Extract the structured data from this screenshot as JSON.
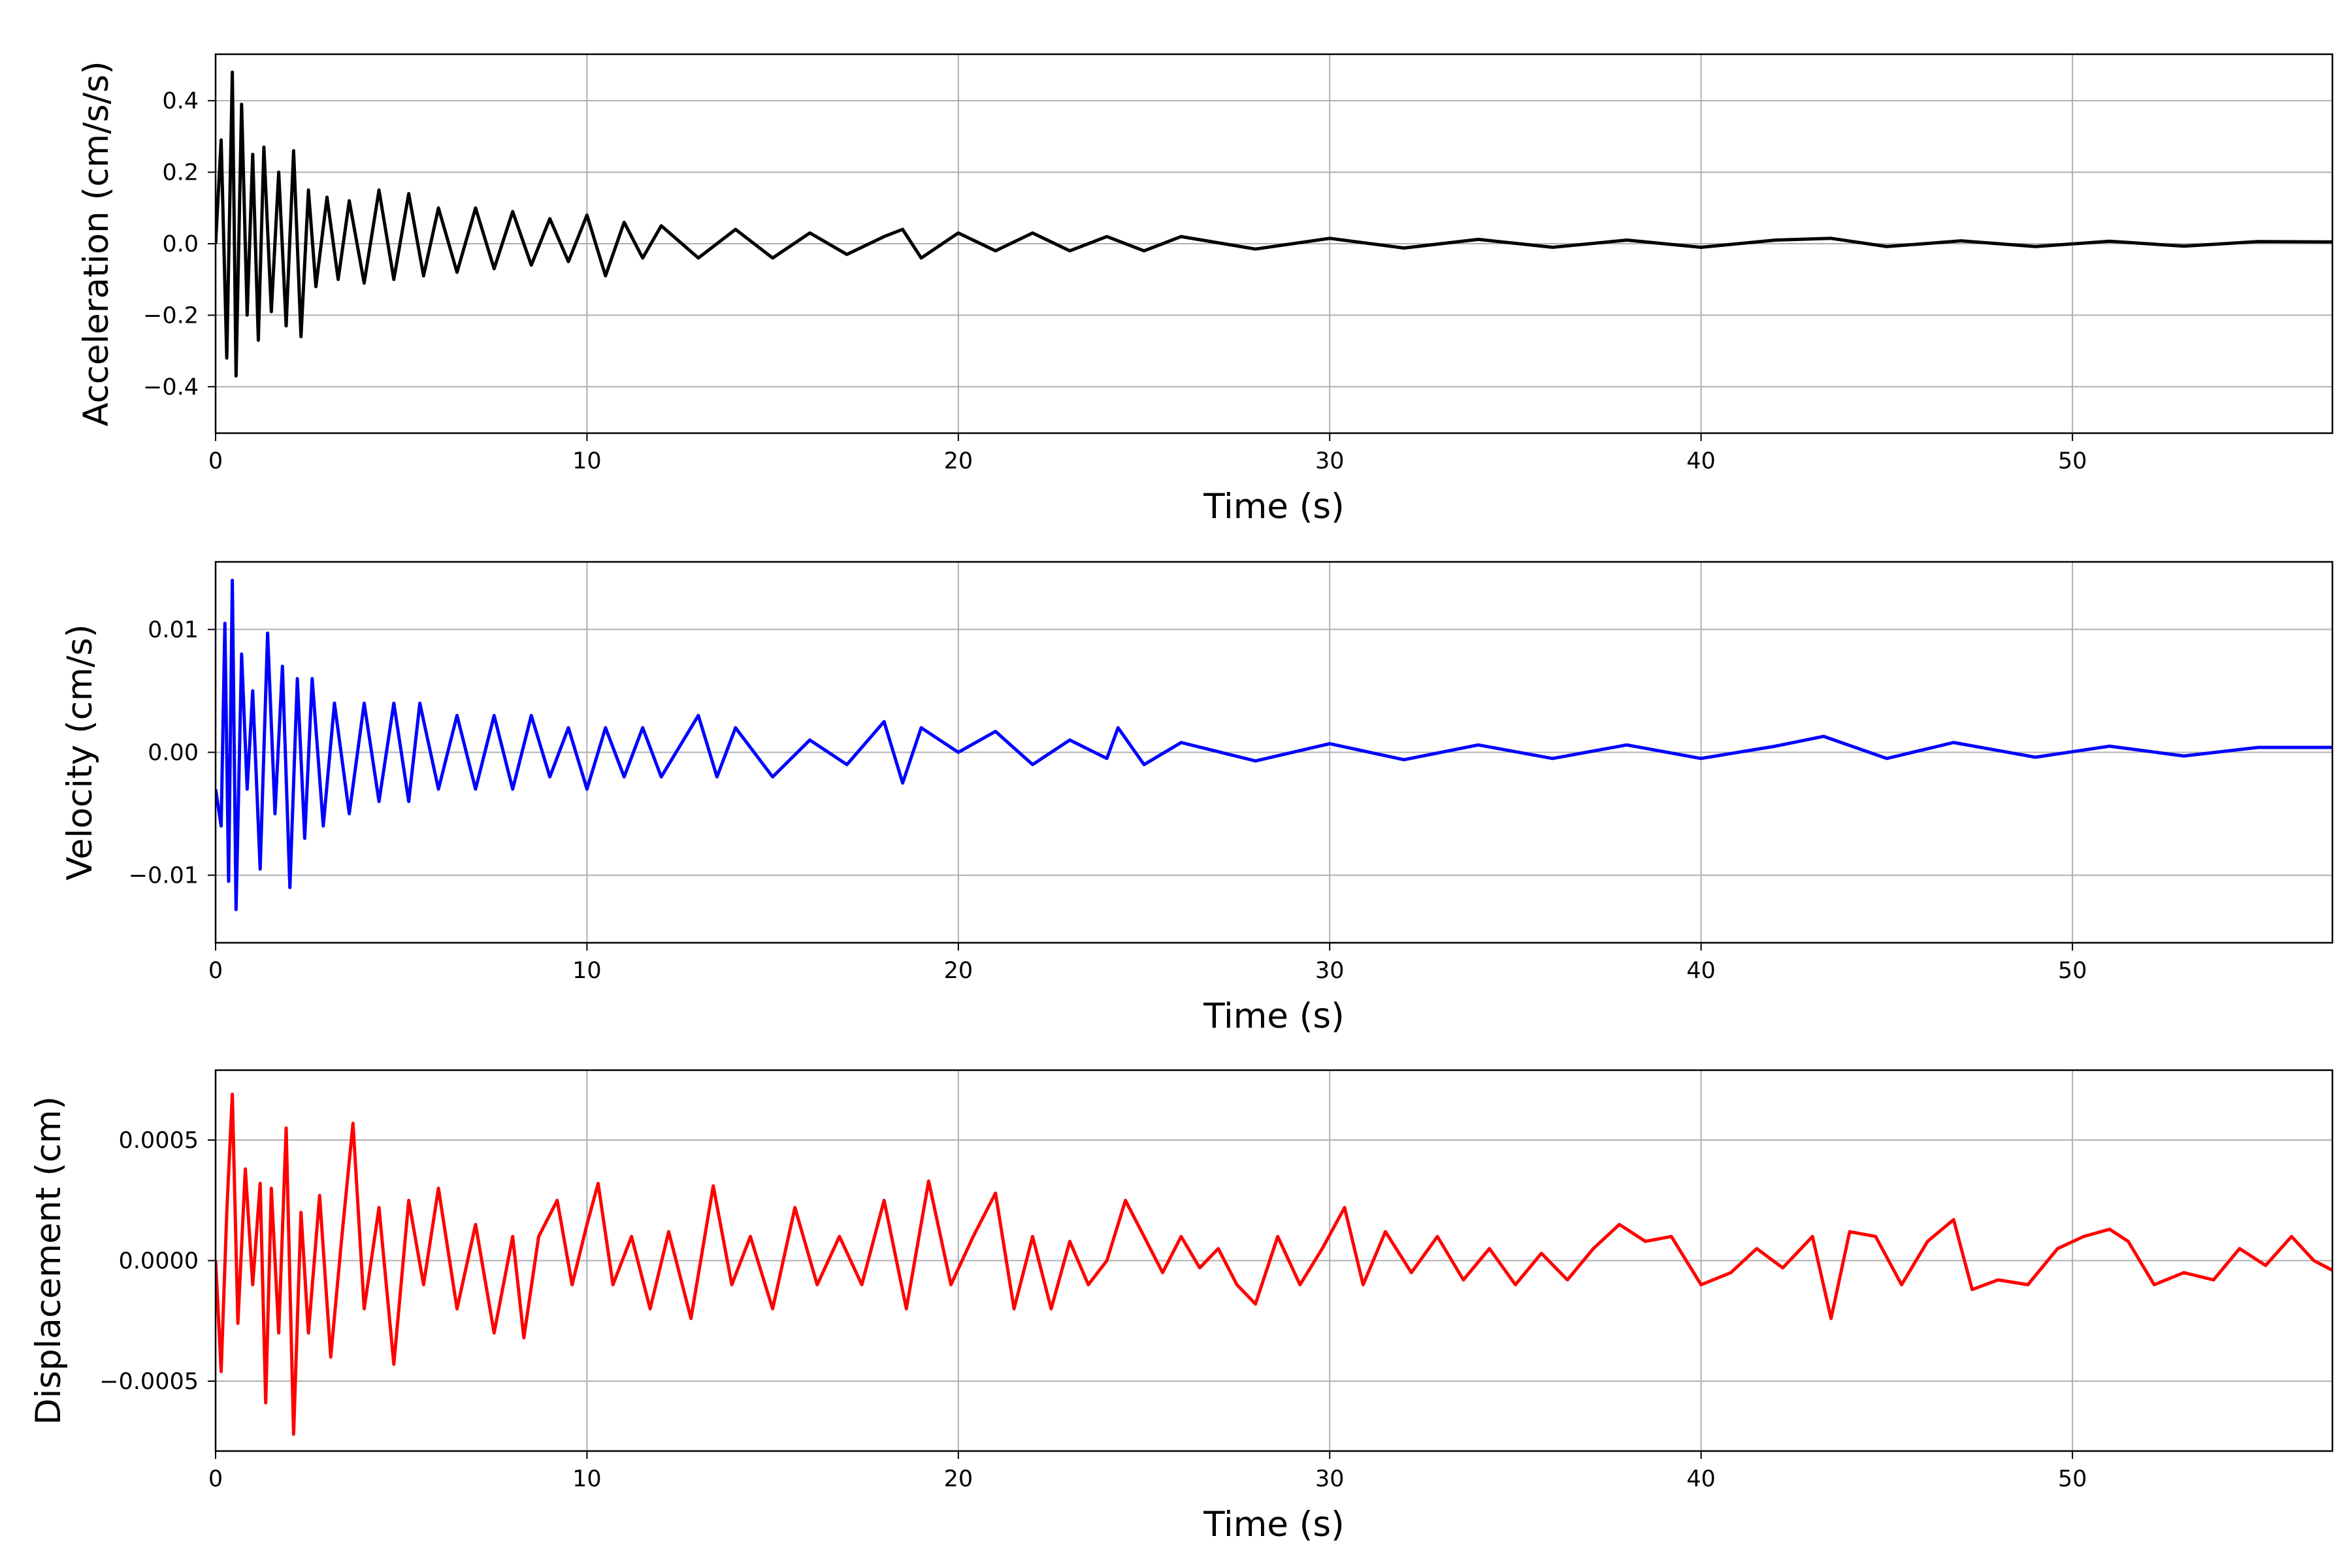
{
  "chart_data": [
    {
      "type": "line",
      "xlabel": "Time (s)",
      "ylabel": "Acceleration (cm/s/s)",
      "xlim": [
        0,
        57
      ],
      "ylim": [
        -0.53,
        0.53
      ],
      "xticks": [
        0,
        10,
        20,
        30,
        40,
        50
      ],
      "xtick_labels": [
        "0",
        "10",
        "20",
        "30",
        "40",
        "50"
      ],
      "yticks": [
        -0.4,
        -0.2,
        0.0,
        0.2,
        0.4
      ],
      "ytick_labels": [
        "−0.4",
        "−0.2",
        "0.0",
        "0.2",
        "0.4"
      ],
      "grid": true,
      "color": "#000000",
      "series": [
        {
          "x": [
            0,
            0.15,
            0.3,
            0.45,
            0.55,
            0.7,
            0.85,
            1.0,
            1.15,
            1.3,
            1.5,
            1.7,
            1.9,
            2.1,
            2.3,
            2.5,
            2.7,
            3.0,
            3.3,
            3.6,
            4.0,
            4.4,
            4.8,
            5.2,
            5.6,
            6.0,
            6.5,
            7.0,
            7.5,
            8.0,
            8.5,
            9.0,
            9.5,
            10.0,
            10.5,
            11.0,
            11.5,
            12.0,
            13.0,
            14.0,
            15.0,
            16.0,
            17.0,
            18.0,
            18.5,
            19.0,
            20.0,
            21.0,
            22.0,
            23.0,
            24.0,
            25.0,
            26.0,
            28.0,
            30.0,
            32.0,
            34.0,
            36.0,
            38.0,
            40.0,
            42.0,
            43.5,
            45.0,
            47.0,
            49.0,
            51.0,
            53.0,
            55.0,
            57.0
          ],
          "y": [
            0.0,
            0.29,
            -0.32,
            0.48,
            -0.37,
            0.39,
            -0.2,
            0.25,
            -0.27,
            0.27,
            -0.19,
            0.2,
            -0.23,
            0.26,
            -0.26,
            0.15,
            -0.12,
            0.13,
            -0.1,
            0.12,
            -0.11,
            0.15,
            -0.1,
            0.14,
            -0.09,
            0.1,
            -0.08,
            0.1,
            -0.07,
            0.09,
            -0.06,
            0.07,
            -0.05,
            0.08,
            -0.09,
            0.06,
            -0.04,
            0.05,
            -0.04,
            0.04,
            -0.04,
            0.03,
            -0.03,
            0.02,
            0.04,
            -0.04,
            0.03,
            -0.02,
            0.03,
            -0.02,
            0.02,
            -0.02,
            0.02,
            -0.015,
            0.015,
            -0.012,
            0.012,
            -0.01,
            0.01,
            -0.01,
            0.01,
            0.015,
            -0.008,
            0.008,
            -0.008,
            0.007,
            -0.007,
            0.006,
            0.005
          ]
        }
      ]
    },
    {
      "type": "line",
      "xlabel": "Time (s)",
      "ylabel": "Velocity (cm/s)",
      "xlim": [
        0,
        57
      ],
      "ylim": [
        -0.0155,
        0.0155
      ],
      "xticks": [
        0,
        10,
        20,
        30,
        40,
        50
      ],
      "xtick_labels": [
        "0",
        "10",
        "20",
        "30",
        "40",
        "50"
      ],
      "yticks": [
        -0.01,
        0.0,
        0.01
      ],
      "ytick_labels": [
        "−0.01",
        "0.00",
        "0.01"
      ],
      "grid": true,
      "color": "#0000ff",
      "series": [
        {
          "x": [
            0,
            0.15,
            0.25,
            0.35,
            0.45,
            0.55,
            0.7,
            0.85,
            1.0,
            1.2,
            1.4,
            1.6,
            1.8,
            2.0,
            2.2,
            2.4,
            2.6,
            2.9,
            3.2,
            3.6,
            4.0,
            4.4,
            4.8,
            5.2,
            5.5,
            6.0,
            6.5,
            7.0,
            7.5,
            8.0,
            8.5,
            9.0,
            9.5,
            10.0,
            10.5,
            11.0,
            11.5,
            12.0,
            13.0,
            13.5,
            14.0,
            15.0,
            16.0,
            17.0,
            18.0,
            18.5,
            19.0,
            20.0,
            21.0,
            22.0,
            23.0,
            24.0,
            24.3,
            25.0,
            26.0,
            28.0,
            30.0,
            32.0,
            34.0,
            36.0,
            38.0,
            40.0,
            42.0,
            43.3,
            45.0,
            46.8,
            49.0,
            51.0,
            53.0,
            55.0,
            57.0
          ],
          "y": [
            -0.003,
            -0.006,
            0.0105,
            -0.0105,
            0.014,
            -0.0128,
            0.008,
            -0.003,
            0.005,
            -0.0095,
            0.0097,
            -0.005,
            0.007,
            -0.011,
            0.006,
            -0.007,
            0.006,
            -0.006,
            0.004,
            -0.005,
            0.004,
            -0.004,
            0.004,
            -0.004,
            0.004,
            -0.003,
            0.003,
            -0.003,
            0.003,
            -0.003,
            0.003,
            -0.002,
            0.002,
            -0.003,
            0.002,
            -0.002,
            0.002,
            -0.002,
            0.003,
            -0.002,
            0.002,
            -0.002,
            0.001,
            -0.001,
            0.0025,
            -0.0025,
            0.002,
            0.0,
            0.0017,
            -0.001,
            0.001,
            -0.0005,
            0.002,
            -0.001,
            0.0008,
            -0.0007,
            0.0007,
            -0.0006,
            0.0006,
            -0.0005,
            0.0006,
            -0.0005,
            0.0005,
            0.0013,
            -0.0005,
            0.0008,
            -0.0004,
            0.0005,
            -0.0003,
            0.0004,
            0.0004
          ]
        }
      ]
    },
    {
      "type": "line",
      "xlabel": "Time (s)",
      "ylabel": "Displacement (cm)",
      "xlim": [
        0,
        57
      ],
      "ylim": [
        -0.00079,
        0.00079
      ],
      "xticks": [
        0,
        10,
        20,
        30,
        40,
        50
      ],
      "xtick_labels": [
        "0",
        "10",
        "20",
        "30",
        "40",
        "50"
      ],
      "yticks": [
        -0.0005,
        0.0,
        0.0005
      ],
      "ytick_labels": [
        "−0.0005",
        "0.0000",
        "0.0005"
      ],
      "grid": true,
      "color": "#ff0000",
      "series": [
        {
          "x": [
            0,
            0.15,
            0.3,
            0.45,
            0.6,
            0.8,
            1.0,
            1.2,
            1.35,
            1.5,
            1.7,
            1.9,
            2.1,
            2.3,
            2.5,
            2.8,
            3.1,
            3.4,
            3.7,
            4.0,
            4.4,
            4.8,
            5.2,
            5.6,
            6.0,
            6.5,
            7.0,
            7.5,
            8.0,
            8.3,
            8.7,
            9.2,
            9.6,
            10.0,
            10.3,
            10.7,
            11.2,
            11.7,
            12.2,
            12.8,
            13.4,
            13.9,
            14.4,
            15.0,
            15.6,
            16.2,
            16.8,
            17.4,
            18.0,
            18.6,
            19.2,
            19.8,
            20.4,
            21.0,
            21.5,
            22.0,
            22.5,
            23.0,
            23.5,
            24.0,
            24.5,
            25.0,
            25.5,
            26.0,
            26.5,
            27.0,
            27.5,
            28.0,
            28.6,
            29.2,
            29.8,
            30.4,
            30.9,
            31.5,
            32.2,
            32.9,
            33.6,
            34.3,
            35.0,
            35.7,
            36.4,
            37.1,
            37.8,
            38.5,
            39.2,
            40.0,
            40.8,
            41.5,
            42.2,
            43.0,
            43.5,
            44.0,
            44.7,
            45.4,
            46.1,
            46.8,
            47.3,
            48.0,
            48.8,
            49.6,
            50.3,
            51.0,
            51.5,
            52.2,
            53.0,
            53.8,
            54.5,
            55.2,
            55.9,
            56.5,
            57.0
          ],
          "y": [
            0.0,
            -0.00046,
            0.0002,
            0.00069,
            -0.00026,
            0.00038,
            -0.0001,
            0.00032,
            -0.00059,
            0.0003,
            -0.0003,
            0.00055,
            -0.00072,
            0.0002,
            -0.0003,
            0.00027,
            -0.0004,
            0.0001,
            0.00057,
            -0.0002,
            0.00022,
            -0.00043,
            0.00025,
            -0.0001,
            0.0003,
            -0.0002,
            0.00015,
            -0.0003,
            0.0001,
            -0.00032,
            0.0001,
            0.00025,
            -0.0001,
            0.00015,
            0.00032,
            -0.0001,
            0.0001,
            -0.0002,
            0.00012,
            -0.00024,
            0.00031,
            -0.0001,
            0.0001,
            -0.0002,
            0.00022,
            -0.0001,
            0.0001,
            -0.0001,
            0.00025,
            -0.0002,
            0.00033,
            -0.0001,
            0.0001,
            0.00028,
            -0.0002,
            0.0001,
            -0.0002,
            8e-05,
            -0.0001,
            0.0,
            0.00025,
            0.0001,
            -5e-05,
            0.0001,
            -3e-05,
            5e-05,
            -0.0001,
            -0.00018,
            0.0001,
            -0.0001,
            5e-05,
            0.00022,
            -0.0001,
            0.00012,
            -5e-05,
            0.0001,
            -8e-05,
            5e-05,
            -0.0001,
            3e-05,
            -8e-05,
            5e-05,
            0.00015,
            8e-05,
            0.0001,
            -0.0001,
            -5e-05,
            5e-05,
            -3e-05,
            0.0001,
            -0.00024,
            0.00012,
            0.0001,
            -0.0001,
            8e-05,
            0.00017,
            -0.00012,
            -8e-05,
            -0.0001,
            5e-05,
            0.0001,
            0.00013,
            8e-05,
            -0.0001,
            -5e-05,
            -8e-05,
            5e-05,
            -2e-05,
            0.0001,
            0.0,
            -4e-05
          ]
        }
      ]
    }
  ]
}
